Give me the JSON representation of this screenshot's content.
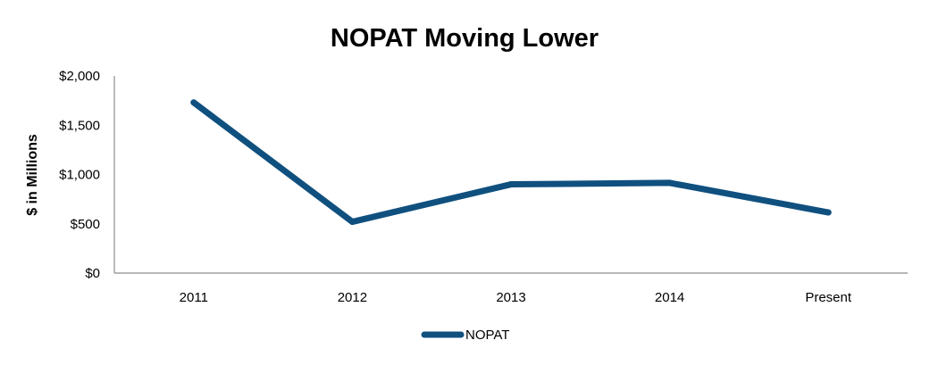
{
  "chart_data": {
    "type": "line",
    "title": "NOPAT Moving Lower",
    "xlabel": "",
    "ylabel": "$ in Millions",
    "categories": [
      "2011",
      "2012",
      "2013",
      "2014",
      "Present"
    ],
    "series": [
      {
        "name": "NOPAT",
        "values": [
          1730,
          520,
          900,
          915,
          615
        ],
        "color": "#10507f"
      }
    ],
    "ylim": [
      0,
      2000
    ],
    "yticks": [
      0,
      500,
      1000,
      1500,
      2000
    ],
    "ytick_labels": [
      "$0",
      "$500",
      "$1,000",
      "$1,500",
      "$2,000"
    ],
    "grid": false,
    "legend": "bottom-center"
  }
}
